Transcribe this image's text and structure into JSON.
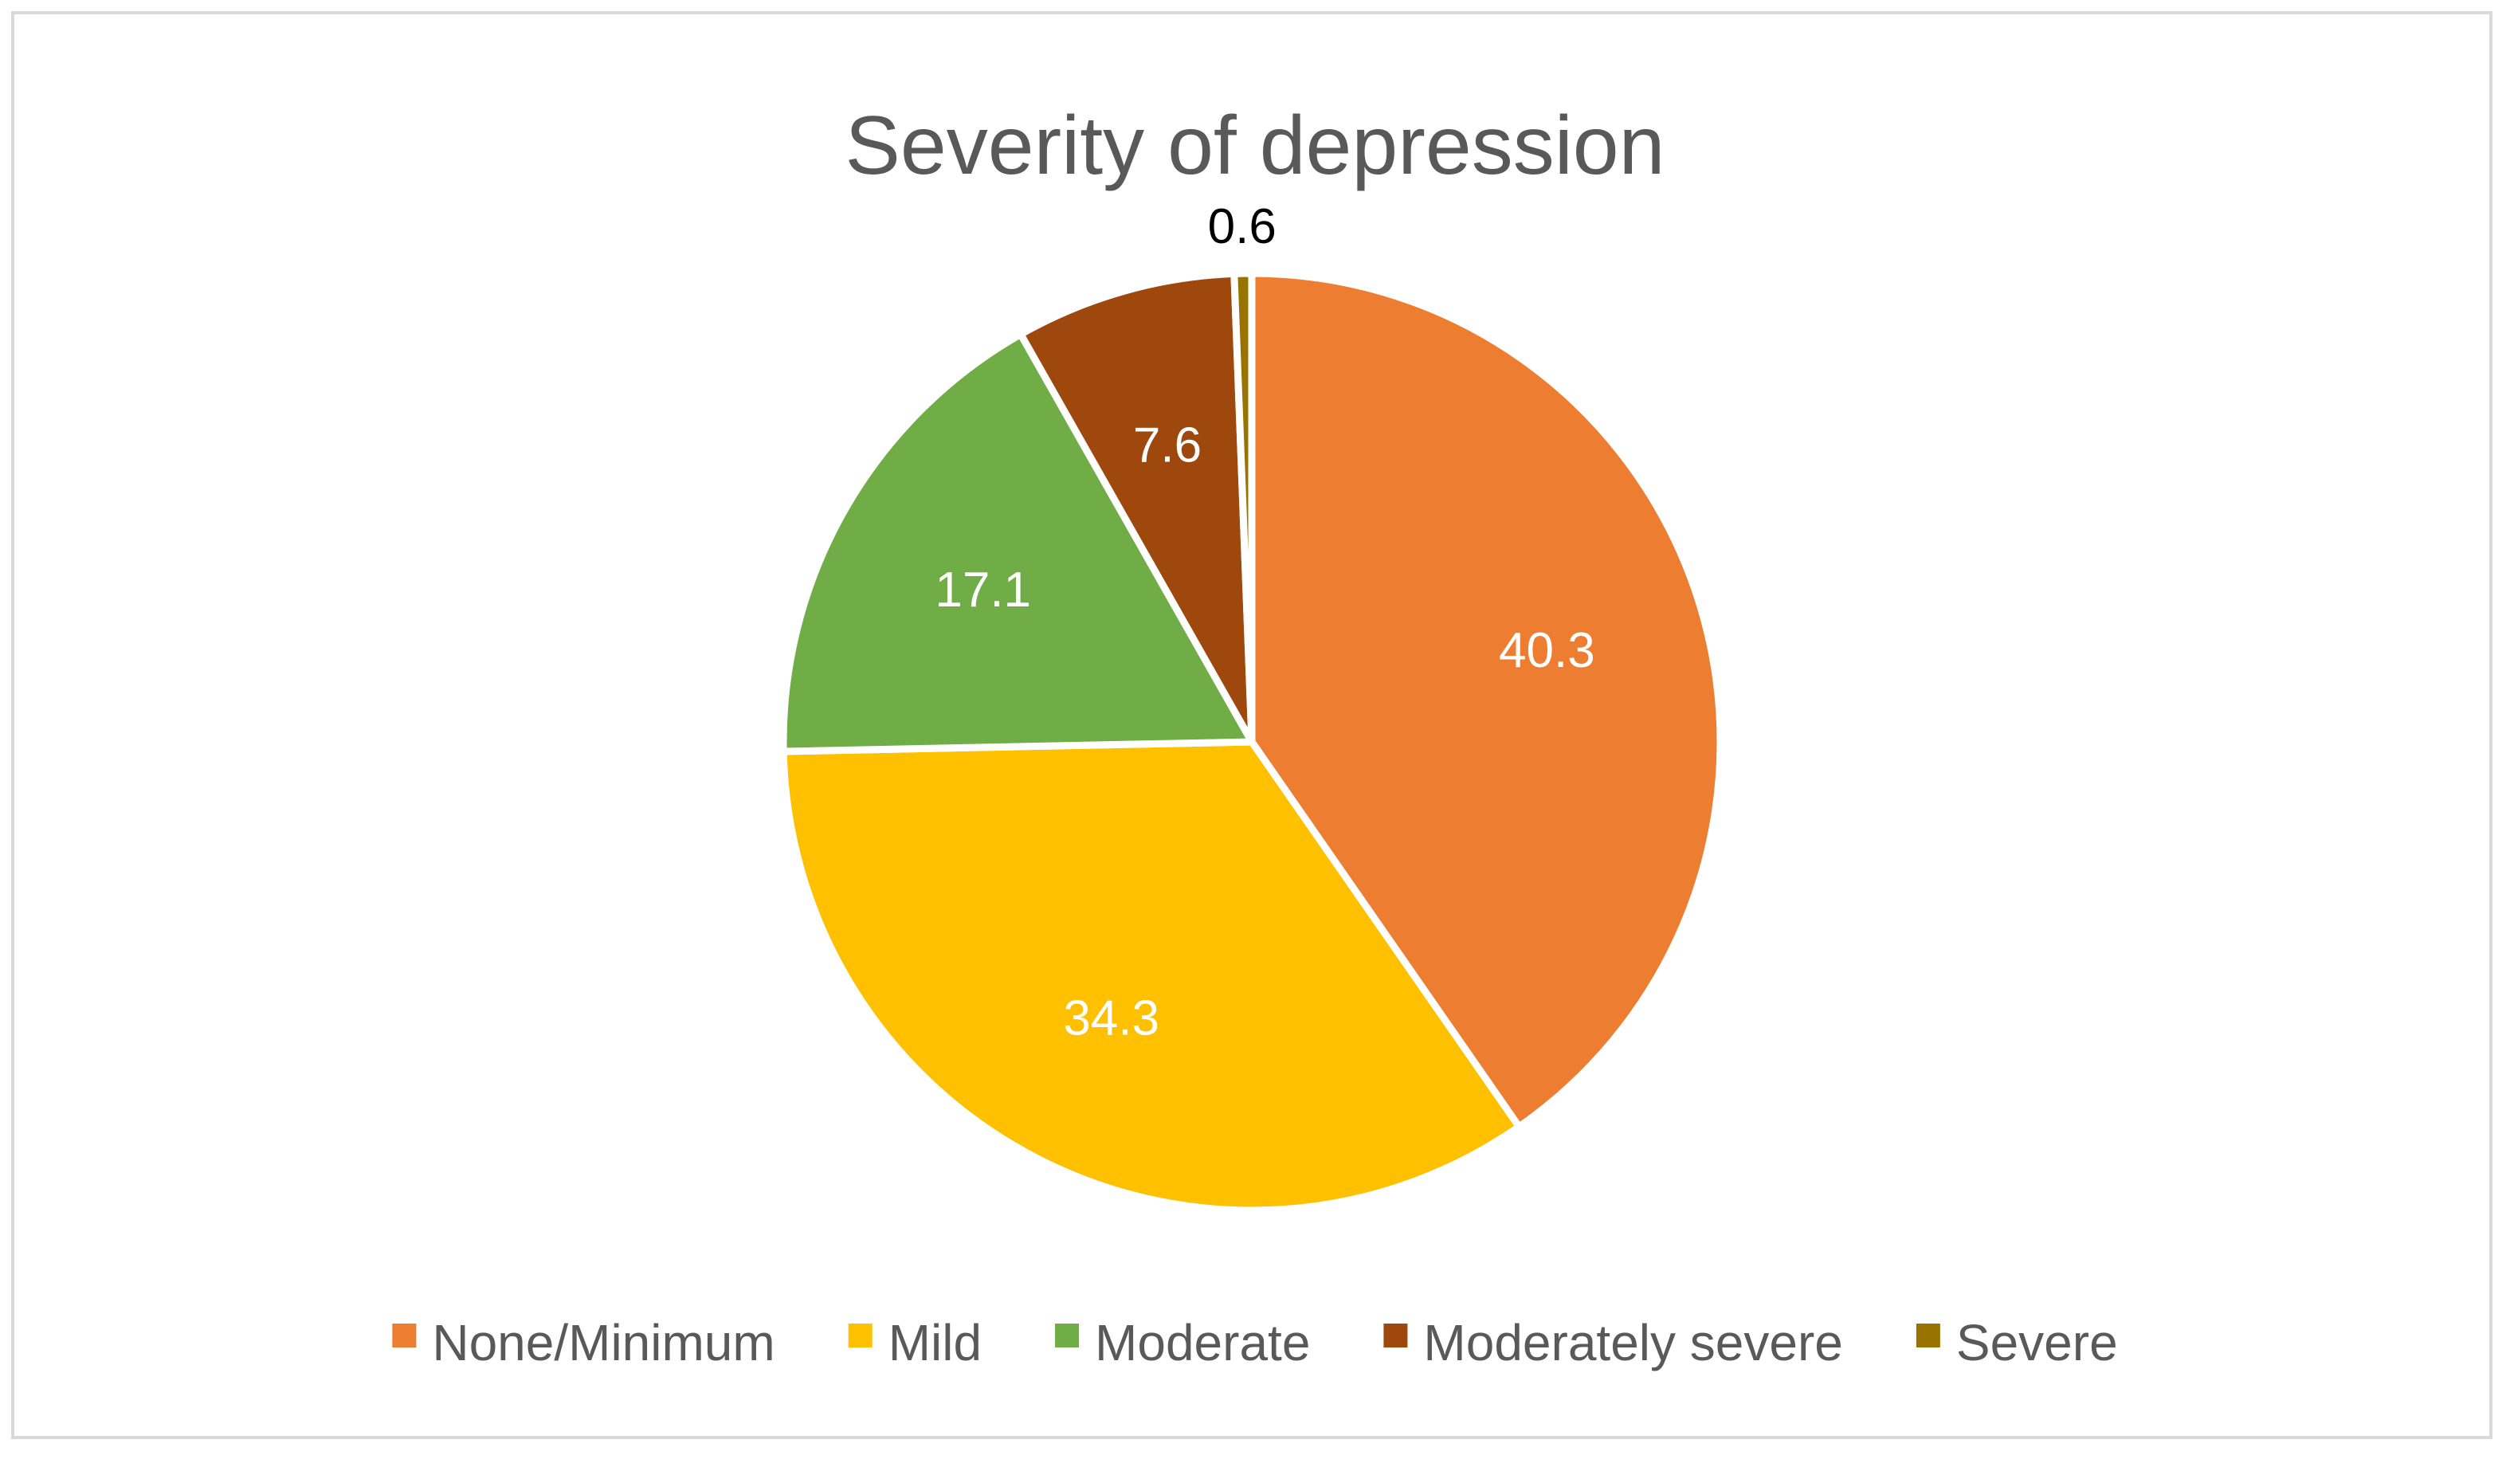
{
  "chart_data": {
    "type": "pie",
    "title": "Severity of depression",
    "categories": [
      "None/Minimum",
      "Mild",
      "Moderate",
      "Moderately severe",
      "Severe"
    ],
    "values": [
      40.3,
      34.3,
      17.1,
      7.6,
      0.6
    ],
    "labels": [
      "40.3",
      "34.3",
      "17.1",
      "7.6",
      "0.6"
    ],
    "colors": [
      "#ED7D31",
      "#FFC000",
      "#70AD47",
      "#9E480E",
      "#997300"
    ],
    "label_colors": [
      "#FFFFFF",
      "#FFFFFF",
      "#FFFFFF",
      "#FFFFFF",
      "#000000"
    ],
    "start_angle_deg": 0,
    "direction": "clockwise",
    "legend_position": "bottom"
  }
}
